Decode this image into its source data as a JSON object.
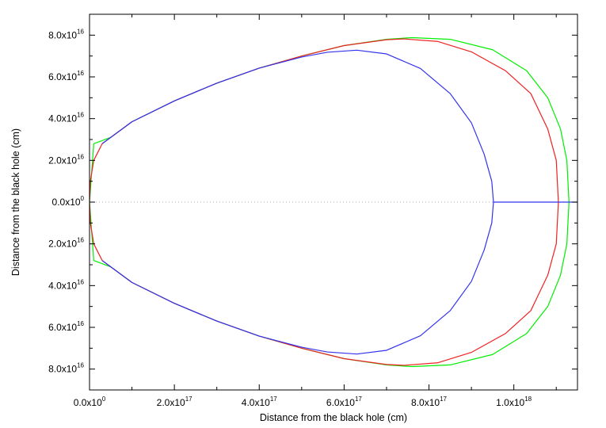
{
  "chart_data": {
    "type": "line",
    "title": "",
    "xlabel": "Distance from the black hole (cm)",
    "ylabel": "Distance from the black hole (cm)",
    "xlim": [
      0,
      1.15e+18
    ],
    "ylim": [
      -9e+16,
      9e+16
    ],
    "grid": false,
    "x_ticks": [
      {
        "value": 0,
        "mantissa": "0.0x10",
        "exp": "0"
      },
      {
        "value": 2e+17,
        "mantissa": "2.0x10",
        "exp": "17"
      },
      {
        "value": 4e+17,
        "mantissa": "4.0x10",
        "exp": "17"
      },
      {
        "value": 6e+17,
        "mantissa": "6.0x10",
        "exp": "17"
      },
      {
        "value": 8e+17,
        "mantissa": "8.0x10",
        "exp": "17"
      },
      {
        "value": 1e+18,
        "mantissa": "1.0x10",
        "exp": "18"
      }
    ],
    "y_ticks": [
      {
        "value": 8e+16,
        "mantissa": "8.0x10",
        "exp": "16"
      },
      {
        "value": 6e+16,
        "mantissa": "6.0x10",
        "exp": "16"
      },
      {
        "value": 4e+16,
        "mantissa": "4.0x10",
        "exp": "16"
      },
      {
        "value": 2e+16,
        "mantissa": "2.0x10",
        "exp": "16"
      },
      {
        "value": 0,
        "mantissa": "0.0x10",
        "exp": "0"
      },
      {
        "value": -2e+16,
        "mantissa": "2.0x10",
        "exp": "16"
      },
      {
        "value": -4e+16,
        "mantissa": "4.0x10",
        "exp": "16"
      },
      {
        "value": -6e+16,
        "mantissa": "6.0x10",
        "exp": "16"
      },
      {
        "value": -8e+16,
        "mantissa": "8.0x10",
        "exp": "16"
      }
    ],
    "zero_line": {
      "y": 0,
      "style": "dotted",
      "color": "#aaaaaa"
    },
    "series": [
      {
        "color": "#00ee00",
        "points": [
          [
            0,
            0
          ],
          [
            1e+16,
            2.8e+16
          ],
          [
            5e+16,
            3.1e+16
          ],
          [
            1e+17,
            3.85e+16
          ],
          [
            2e+17,
            4.85e+16
          ],
          [
            3e+17,
            5.7e+16
          ],
          [
            4e+17,
            6.42e+16
          ],
          [
            5e+17,
            7e+16
          ],
          [
            6e+17,
            7.5e+16
          ],
          [
            7e+17,
            7.8e+16
          ],
          [
            7.6e+17,
            7.88e+16
          ],
          [
            8.5e+17,
            7.8e+16
          ],
          [
            9.5e+17,
            7.3e+16
          ],
          [
            1.03e+18,
            6.3e+16
          ],
          [
            1.08e+18,
            5e+16
          ],
          [
            1.11e+18,
            3.5e+16
          ],
          [
            1.125e+18,
            2e+16
          ],
          [
            1.13e+18,
            0
          ],
          [
            1.125e+18,
            -2e+16
          ],
          [
            1.11e+18,
            -3.5e+16
          ],
          [
            1.08e+18,
            -5e+16
          ],
          [
            1.03e+18,
            -6.3e+16
          ],
          [
            9.5e+17,
            -7.3e+16
          ],
          [
            8.5e+17,
            -7.8e+16
          ],
          [
            7.6e+17,
            -7.88e+16
          ],
          [
            7e+17,
            -7.8e+16
          ],
          [
            6e+17,
            -7.5e+16
          ],
          [
            5e+17,
            -7e+16
          ],
          [
            4e+17,
            -6.42e+16
          ],
          [
            3e+17,
            -5.7e+16
          ],
          [
            2e+17,
            -4.85e+16
          ],
          [
            1e+17,
            -3.85e+16
          ],
          [
            5e+16,
            -3.1e+16
          ],
          [
            1e+16,
            -2.8e+16
          ],
          [
            0,
            0
          ]
        ]
      },
      {
        "color": "#ee2222",
        "points": [
          [
            0,
            0
          ],
          [
            2000000000000000.0,
            1e+16
          ],
          [
            1e+16,
            2e+16
          ],
          [
            3e+16,
            2.8e+16
          ],
          [
            1e+17,
            3.85e+16
          ],
          [
            2e+17,
            4.85e+16
          ],
          [
            3e+17,
            5.7e+16
          ],
          [
            4e+17,
            6.42e+16
          ],
          [
            5e+17,
            7e+16
          ],
          [
            6e+17,
            7.5e+16
          ],
          [
            7e+17,
            7.78e+16
          ],
          [
            7.4e+17,
            7.82e+16
          ],
          [
            8.2e+17,
            7.7e+16
          ],
          [
            9e+17,
            7.2e+16
          ],
          [
            9.8e+17,
            6.3e+16
          ],
          [
            1.04e+18,
            5.2e+16
          ],
          [
            1.08e+18,
            3.5e+16
          ],
          [
            1.1e+18,
            2e+16
          ],
          [
            1.105e+18,
            0
          ],
          [
            1.1e+18,
            -2e+16
          ],
          [
            1.08e+18,
            -3.5e+16
          ],
          [
            1.04e+18,
            -5.2e+16
          ],
          [
            9.8e+17,
            -6.3e+16
          ],
          [
            9e+17,
            -7.2e+16
          ],
          [
            8.2e+17,
            -7.7e+16
          ],
          [
            7.4e+17,
            -7.82e+16
          ],
          [
            7e+17,
            -7.78e+16
          ],
          [
            6e+17,
            -7.5e+16
          ],
          [
            5e+17,
            -7e+16
          ],
          [
            4e+17,
            -6.42e+16
          ],
          [
            3e+17,
            -5.7e+16
          ],
          [
            2e+17,
            -4.85e+16
          ],
          [
            1e+17,
            -3.85e+16
          ],
          [
            3e+16,
            -2.8e+16
          ],
          [
            1e+16,
            -2e+16
          ],
          [
            2000000000000000.0,
            -1e+16
          ],
          [
            0,
            0
          ]
        ]
      },
      {
        "color": "#3333ee",
        "points": [
          [
            3e+16,
            2.8e+16
          ],
          [
            1e+17,
            3.85e+16
          ],
          [
            2e+17,
            4.85e+16
          ],
          [
            3e+17,
            5.7e+16
          ],
          [
            4e+17,
            6.42e+16
          ],
          [
            5e+17,
            6.95e+16
          ],
          [
            5.6e+17,
            7.18e+16
          ],
          [
            6.3e+17,
            7.28e+16
          ],
          [
            7e+17,
            7.1e+16
          ],
          [
            7.8e+17,
            6.4e+16
          ],
          [
            8.5e+17,
            5.2e+16
          ],
          [
            9e+17,
            3.8e+16
          ],
          [
            9.3e+17,
            2.3e+16
          ],
          [
            9.48e+17,
            1e+16
          ],
          [
            9.52e+17,
            0
          ],
          [
            9.48e+17,
            -1e+16
          ],
          [
            9.3e+17,
            -2.3e+16
          ],
          [
            9e+17,
            -3.8e+16
          ],
          [
            8.5e+17,
            -5.2e+16
          ],
          [
            7.8e+17,
            -6.4e+16
          ],
          [
            7e+17,
            -7.1e+16
          ],
          [
            6.3e+17,
            -7.28e+16
          ],
          [
            5.6e+17,
            -7.18e+16
          ],
          [
            5e+17,
            -6.95e+16
          ],
          [
            4e+17,
            -6.42e+16
          ],
          [
            3e+17,
            -5.7e+16
          ],
          [
            2e+17,
            -4.85e+16
          ],
          [
            1e+17,
            -3.85e+16
          ],
          [
            3e+16,
            -2.8e+16
          ]
        ]
      },
      {
        "color": "#3333ee",
        "points": [
          [
            9.52e+17,
            0
          ],
          [
            1.15e+18,
            0
          ]
        ]
      }
    ]
  }
}
